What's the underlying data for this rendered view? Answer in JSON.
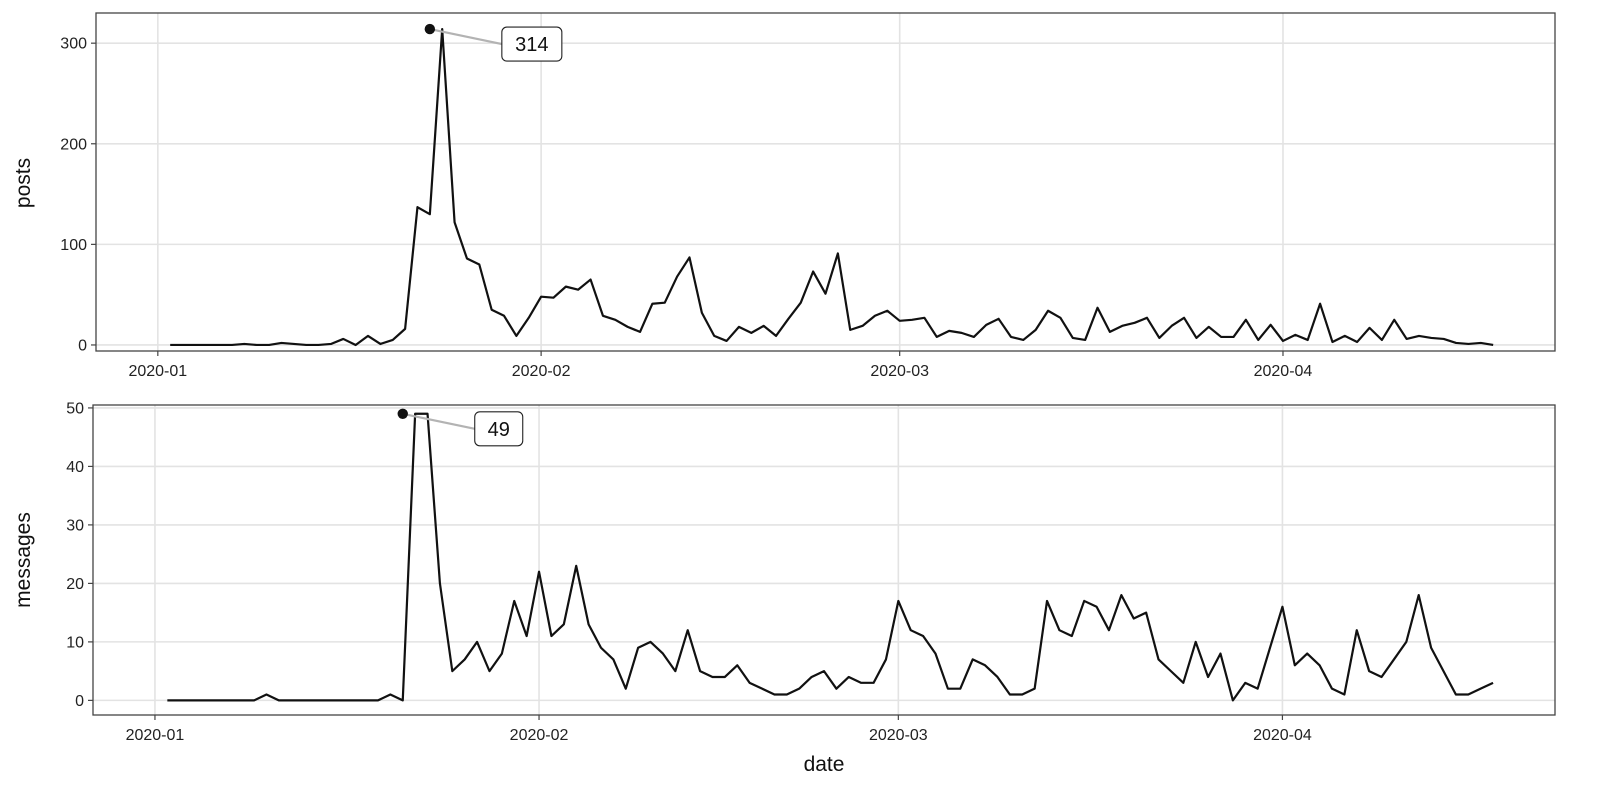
{
  "chart_data": [
    {
      "type": "line",
      "xlabel": "",
      "ylabel": "posts",
      "ylim": [
        -6,
        330
      ],
      "xlim": [
        "2019-12-27",
        "2020-04-23"
      ],
      "x_tick_labels": [
        "2020-01",
        "2020-02",
        "2020-03",
        "2020-04"
      ],
      "y_ticks": [
        0,
        100,
        200,
        300
      ],
      "grid": true,
      "annotation": {
        "x": "2020-01-23",
        "value": 314,
        "label": "314"
      },
      "series": [
        {
          "x": [
            "2020-01-02",
            "2020-01-03",
            "2020-01-04",
            "2020-01-05",
            "2020-01-06",
            "2020-01-07",
            "2020-01-08",
            "2020-01-09",
            "2020-01-10",
            "2020-01-11",
            "2020-01-12",
            "2020-01-13",
            "2020-01-14",
            "2020-01-15",
            "2020-01-16",
            "2020-01-17",
            "2020-01-18",
            "2020-01-19",
            "2020-01-20",
            "2020-01-21",
            "2020-01-22",
            "2020-01-23",
            "2020-01-24",
            "2020-01-25",
            "2020-01-26",
            "2020-01-27",
            "2020-01-28",
            "2020-01-29",
            "2020-01-30",
            "2020-01-31",
            "2020-02-01",
            "2020-02-02",
            "2020-02-03",
            "2020-02-04",
            "2020-02-05",
            "2020-02-06",
            "2020-02-07",
            "2020-02-08",
            "2020-02-09",
            "2020-02-10",
            "2020-02-11",
            "2020-02-12",
            "2020-02-13",
            "2020-02-14",
            "2020-02-15",
            "2020-02-16",
            "2020-02-17",
            "2020-02-18",
            "2020-02-19",
            "2020-02-20",
            "2020-02-21",
            "2020-02-22",
            "2020-02-23",
            "2020-02-24",
            "2020-02-25",
            "2020-02-26",
            "2020-02-27",
            "2020-02-28",
            "2020-02-29",
            "2020-03-01",
            "2020-03-02",
            "2020-03-03",
            "2020-03-04",
            "2020-03-05",
            "2020-03-06",
            "2020-03-07",
            "2020-03-08",
            "2020-03-09",
            "2020-03-10",
            "2020-03-11",
            "2020-03-12",
            "2020-03-13",
            "2020-03-14",
            "2020-03-15",
            "2020-03-16",
            "2020-03-17",
            "2020-03-18",
            "2020-03-19",
            "2020-03-20",
            "2020-03-21",
            "2020-03-22",
            "2020-03-23",
            "2020-03-24",
            "2020-03-25",
            "2020-03-26",
            "2020-03-27",
            "2020-03-28",
            "2020-03-29",
            "2020-03-30",
            "2020-03-31",
            "2020-04-01",
            "2020-04-02",
            "2020-04-03",
            "2020-04-04",
            "2020-04-05",
            "2020-04-06",
            "2020-04-07",
            "2020-04-08",
            "2020-04-09",
            "2020-04-10",
            "2020-04-11",
            "2020-04-12",
            "2020-04-13",
            "2020-04-14",
            "2020-04-15",
            "2020-04-16",
            "2020-04-17",
            "2020-04-18"
          ],
          "values": [
            0,
            0,
            0,
            0,
            0,
            0,
            1,
            0,
            0,
            2,
            1,
            0,
            0,
            1,
            6,
            0,
            9,
            1,
            5,
            16,
            137,
            130,
            314,
            122,
            86,
            80,
            35,
            29,
            9,
            27,
            48,
            47,
            58,
            55,
            65,
            29,
            25,
            18,
            13,
            41,
            42,
            68,
            87,
            32,
            9,
            4,
            18,
            12,
            19,
            9,
            26,
            42,
            73,
            51,
            91,
            15,
            19,
            29,
            34,
            24,
            25,
            27,
            8,
            14,
            12,
            8,
            20,
            26,
            8,
            5,
            15,
            34,
            27,
            7,
            5,
            37,
            13,
            19,
            22,
            27,
            7,
            19,
            27,
            7,
            18,
            8,
            8,
            25,
            5,
            20,
            4,
            10,
            5,
            41,
            3,
            9,
            3,
            17,
            5,
            25,
            6,
            9,
            7,
            6,
            2,
            1,
            2,
            0
          ]
        }
      ]
    },
    {
      "type": "line",
      "xlabel": "date",
      "ylabel": "messages",
      "ylim": [
        -2.5,
        50.5
      ],
      "xlim": [
        "2019-12-27",
        "2020-04-23"
      ],
      "x_tick_labels": [
        "2020-01",
        "2020-02",
        "2020-03",
        "2020-04"
      ],
      "y_ticks": [
        0,
        10,
        20,
        30,
        40,
        50
      ],
      "grid": true,
      "annotation": {
        "x": "2020-01-21",
        "value": 49,
        "label": "49"
      },
      "series": [
        {
          "x": [
            "2020-01-02",
            "2020-01-03",
            "2020-01-04",
            "2020-01-05",
            "2020-01-06",
            "2020-01-07",
            "2020-01-08",
            "2020-01-09",
            "2020-01-10",
            "2020-01-11",
            "2020-01-12",
            "2020-01-13",
            "2020-01-14",
            "2020-01-15",
            "2020-01-16",
            "2020-01-17",
            "2020-01-18",
            "2020-01-19",
            "2020-01-20",
            "2020-01-21",
            "2020-01-22",
            "2020-01-23",
            "2020-01-24",
            "2020-01-25",
            "2020-01-26",
            "2020-01-27",
            "2020-01-28",
            "2020-01-29",
            "2020-01-30",
            "2020-01-31",
            "2020-02-01",
            "2020-02-02",
            "2020-02-03",
            "2020-02-04",
            "2020-02-05",
            "2020-02-06",
            "2020-02-07",
            "2020-02-08",
            "2020-02-09",
            "2020-02-10",
            "2020-02-11",
            "2020-02-12",
            "2020-02-13",
            "2020-02-14",
            "2020-02-15",
            "2020-02-16",
            "2020-02-17",
            "2020-02-18",
            "2020-02-19",
            "2020-02-20",
            "2020-02-21",
            "2020-02-22",
            "2020-02-23",
            "2020-02-24",
            "2020-02-25",
            "2020-02-26",
            "2020-02-27",
            "2020-02-28",
            "2020-02-29",
            "2020-03-01",
            "2020-03-02",
            "2020-03-03",
            "2020-03-04",
            "2020-03-05",
            "2020-03-06",
            "2020-03-07",
            "2020-03-08",
            "2020-03-09",
            "2020-03-10",
            "2020-03-11",
            "2020-03-12",
            "2020-03-13",
            "2020-03-14",
            "2020-03-15",
            "2020-03-16",
            "2020-03-17",
            "2020-03-18",
            "2020-03-19",
            "2020-03-20",
            "2020-03-21",
            "2020-03-22",
            "2020-03-23",
            "2020-03-24",
            "2020-03-25",
            "2020-03-26",
            "2020-03-27",
            "2020-03-28",
            "2020-03-29",
            "2020-03-30",
            "2020-03-31",
            "2020-04-01",
            "2020-04-02",
            "2020-04-03",
            "2020-04-04",
            "2020-04-05",
            "2020-04-06",
            "2020-04-07",
            "2020-04-08",
            "2020-04-09",
            "2020-04-10",
            "2020-04-11",
            "2020-04-12",
            "2020-04-13",
            "2020-04-14",
            "2020-04-15",
            "2020-04-16",
            "2020-04-17",
            "2020-04-18"
          ],
          "values": [
            0,
            0,
            0,
            0,
            0,
            0,
            0,
            0,
            1,
            0,
            0,
            0,
            0,
            0,
            0,
            0,
            0,
            0,
            1,
            0,
            49,
            49,
            20,
            5,
            7,
            10,
            5,
            8,
            17,
            11,
            22,
            11,
            13,
            23,
            13,
            9,
            7,
            2,
            9,
            10,
            8,
            5,
            12,
            5,
            4,
            4,
            6,
            3,
            2,
            1,
            1,
            2,
            4,
            5,
            2,
            4,
            3,
            3,
            7,
            17,
            12,
            11,
            8,
            2,
            2,
            7,
            6,
            4,
            1,
            1,
            2,
            17,
            12,
            11,
            17,
            16,
            12,
            18,
            14,
            15,
            7,
            5,
            3,
            10,
            4,
            8,
            0,
            3,
            2,
            9,
            16,
            6,
            8,
            6,
            2,
            1,
            12,
            5,
            4,
            7,
            10,
            18,
            9,
            5,
            1,
            1,
            2,
            3
          ]
        }
      ]
    }
  ]
}
